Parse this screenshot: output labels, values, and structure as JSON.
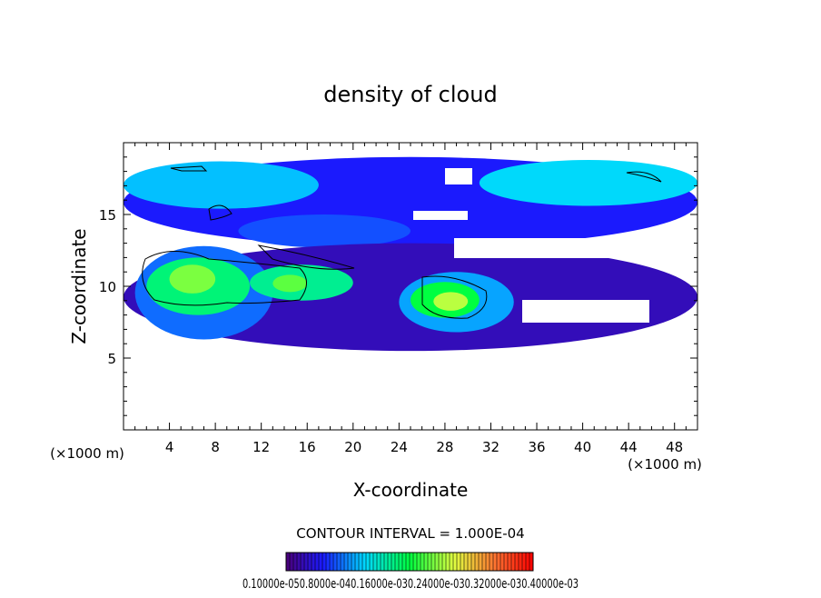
{
  "chart_data": {
    "type": "heatmap",
    "title": "density of cloud",
    "xlabel": "X-coordinate",
    "ylabel": "Z-coordinate",
    "x_unit": "(×1000 m)",
    "z_unit": "(×1000 m)",
    "xlim": [
      0,
      50
    ],
    "ylim": [
      0,
      20
    ],
    "x_ticks": [
      "4",
      "8",
      "12",
      "16",
      "20",
      "24",
      "28",
      "32",
      "36",
      "40",
      "44",
      "48"
    ],
    "y_ticks": [
      "5",
      "10",
      "15"
    ],
    "contour_interval_text": "CONTOUR INTERVAL = 1.000E-04",
    "colorbar_labels_text": "0.10000e-050.8000e-040.16000e-030.24000e-030.32000e-030.40000e-03",
    "colorbar_levels": [
      1e-06,
      8e-05,
      0.00016,
      0.00024,
      0.00032,
      0.0004
    ],
    "grid": false,
    "regions": [
      {
        "x": [
          0,
          50
        ],
        "z": [
          12.7,
          19.0
        ],
        "level": 6e-05
      },
      {
        "x": [
          0,
          17
        ],
        "z": [
          15.4,
          18.7
        ],
        "level": 0.00012
      },
      {
        "x": [
          31,
          50
        ],
        "z": [
          15.6,
          18.8
        ],
        "level": 0.00013
      },
      {
        "x": [
          10,
          25
        ],
        "z": [
          12.7,
          15.0
        ],
        "level": 8e-05
      },
      {
        "x": [
          0,
          50
        ],
        "z": [
          5.5,
          13.0
        ],
        "level": 3e-05
      },
      {
        "x": [
          1,
          13
        ],
        "z": [
          6.3,
          12.8
        ],
        "level": 9e-05
      },
      {
        "x": [
          2,
          11
        ],
        "z": [
          8.0,
          12.0
        ],
        "level": 0.00018
      },
      {
        "x": [
          4,
          8
        ],
        "z": [
          9.5,
          11.5
        ],
        "level": 0.00024
      },
      {
        "x": [
          11,
          20
        ],
        "z": [
          9.0,
          11.5
        ],
        "level": 0.00017
      },
      {
        "x": [
          13,
          16
        ],
        "z": [
          9.6,
          10.8
        ],
        "level": 0.00023
      },
      {
        "x": [
          24,
          34
        ],
        "z": [
          6.8,
          11.0
        ],
        "level": 0.00011
      },
      {
        "x": [
          25,
          31
        ],
        "z": [
          7.8,
          10.3
        ],
        "level": 0.0002
      },
      {
        "x": [
          27,
          30
        ],
        "z": [
          8.3,
          9.6
        ],
        "level": 0.00026
      }
    ]
  }
}
